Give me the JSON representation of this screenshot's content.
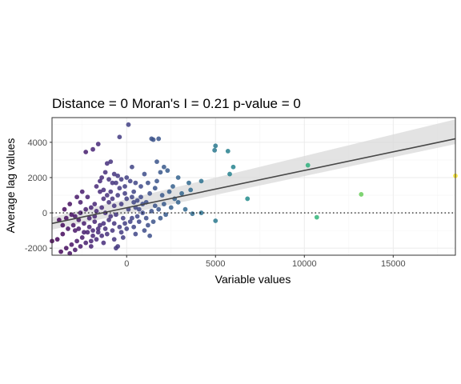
{
  "colors": {
    "panel_border": "#333333",
    "grid_major": "#ebebeb",
    "grid_minor": "#f5f5f5",
    "ribbon": "#d9d9d9",
    "fit_line": "#474747",
    "zero_line": "#000000",
    "viridis_low": "#440154",
    "viridis_mid": "#21908c",
    "viridis_high": "#fde725"
  },
  "chart_data": {
    "type": "scatter",
    "title": "Distance = 0   Moran's I = 0.21   p-value = 0",
    "xlabel": "Variable values",
    "ylabel": "Average lag values",
    "xlim": [
      -4200,
      18500
    ],
    "ylim": [
      -2400,
      5400
    ],
    "xticks": [
      0,
      5000,
      10000,
      15000
    ],
    "yticks": [
      -2000,
      0,
      2000,
      4000
    ],
    "xtick_labels": [
      "0",
      "5000",
      "10000",
      "15000"
    ],
    "ytick_labels": [
      "-2000",
      "0",
      "2000",
      "4000"
    ],
    "grid": true,
    "legend": "none",
    "color_scale": "viridis (by variable value)",
    "reference_line": {
      "type": "horizontal",
      "y": 0,
      "style": "dotted"
    },
    "fit": {
      "type": "linear",
      "x": [
        -4200,
        18500
      ],
      "y": [
        -600,
        4200
      ],
      "ribbon_lower": [
        -950,
        3900
      ],
      "ribbon_upper": [
        -250,
        5300
      ]
    },
    "points": [
      {
        "x": 100,
        "y": 5000
      },
      {
        "x": -400,
        "y": 4300
      },
      {
        "x": 1400,
        "y": 4200
      },
      {
        "x": 1500,
        "y": 4150
      },
      {
        "x": 1800,
        "y": 4200
      },
      {
        "x": -1600,
        "y": 3900
      },
      {
        "x": -2300,
        "y": 3450
      },
      {
        "x": -1900,
        "y": 3600
      },
      {
        "x": -1100,
        "y": 2800
      },
      {
        "x": 1700,
        "y": 2900
      },
      {
        "x": 2100,
        "y": 2600
      },
      {
        "x": 1900,
        "y": 2300
      },
      {
        "x": 2300,
        "y": 2400
      },
      {
        "x": 2900,
        "y": 2000
      },
      {
        "x": 3500,
        "y": 1700
      },
      {
        "x": 3600,
        "y": 1300
      },
      {
        "x": 4200,
        "y": 1800
      },
      {
        "x": 5000,
        "y": 3800
      },
      {
        "x": 4950,
        "y": 3550
      },
      {
        "x": 5700,
        "y": 3500
      },
      {
        "x": 6000,
        "y": 2600
      },
      {
        "x": 5800,
        "y": 2200
      },
      {
        "x": 6800,
        "y": 800
      },
      {
        "x": 5000,
        "y": -450
      },
      {
        "x": 4200,
        "y": 0
      },
      {
        "x": 3700,
        "y": -50
      },
      {
        "x": 10200,
        "y": 2700
      },
      {
        "x": 10700,
        "y": -250
      },
      {
        "x": 13200,
        "y": 1050
      },
      {
        "x": 18500,
        "y": 2100
      },
      {
        "x": -1200,
        "y": 2300
      },
      {
        "x": -500,
        "y": 2100
      },
      {
        "x": -300,
        "y": 1900
      },
      {
        "x": -800,
        "y": 1700
      },
      {
        "x": 200,
        "y": 1800
      },
      {
        "x": 1000,
        "y": 2200
      },
      {
        "x": 1200,
        "y": 1700
      },
      {
        "x": 800,
        "y": 1500
      },
      {
        "x": 1600,
        "y": 1400
      },
      {
        "x": 1300,
        "y": 1100
      },
      {
        "x": 2000,
        "y": 1000
      },
      {
        "x": 2400,
        "y": 1200
      },
      {
        "x": 2700,
        "y": 800
      },
      {
        "x": 2100,
        "y": 500
      },
      {
        "x": 2500,
        "y": 300
      },
      {
        "x": 1800,
        "y": 200
      },
      {
        "x": 2200,
        "y": -100
      },
      {
        "x": 1900,
        "y": -300
      },
      {
        "x": 1500,
        "y": -500
      },
      {
        "x": 1200,
        "y": -700
      },
      {
        "x": 1000,
        "y": -1000
      },
      {
        "x": 1300,
        "y": -1300
      },
      {
        "x": 500,
        "y": -1200
      },
      {
        "x": -200,
        "y": -1400
      },
      {
        "x": -500,
        "y": -1900
      },
      {
        "x": -600,
        "y": -2000
      },
      {
        "x": -1300,
        "y": 1300
      },
      {
        "x": -1500,
        "y": 1200
      },
      {
        "x": -1100,
        "y": 1000
      },
      {
        "x": -800,
        "y": 800
      },
      {
        "x": -400,
        "y": 1400
      },
      {
        "x": -100,
        "y": 1100
      },
      {
        "x": 300,
        "y": 900
      },
      {
        "x": 600,
        "y": 700
      },
      {
        "x": 900,
        "y": 500
      },
      {
        "x": 500,
        "y": 300
      },
      {
        "x": 100,
        "y": 200
      },
      {
        "x": -300,
        "y": 500
      },
      {
        "x": -700,
        "y": 400
      },
      {
        "x": -1000,
        "y": 600
      },
      {
        "x": -1400,
        "y": 300
      },
      {
        "x": -1700,
        "y": 100
      },
      {
        "x": -1200,
        "y": 0
      },
      {
        "x": -900,
        "y": -200
      },
      {
        "x": -600,
        "y": -100
      },
      {
        "x": -200,
        "y": -300
      },
      {
        "x": 200,
        "y": -500
      },
      {
        "x": 600,
        "y": -200
      },
      {
        "x": 900,
        "y": 0
      },
      {
        "x": 700,
        "y": 200
      },
      {
        "x": 400,
        "y": 600
      },
      {
        "x": 0,
        "y": 800
      },
      {
        "x": -500,
        "y": 1000
      },
      {
        "x": -900,
        "y": 1200
      },
      {
        "x": -1300,
        "y": 800
      },
      {
        "x": -1800,
        "y": 500
      },
      {
        "x": -2000,
        "y": 300
      },
      {
        "x": -2300,
        "y": 200
      },
      {
        "x": -2600,
        "y": 0
      },
      {
        "x": -2900,
        "y": -200
      },
      {
        "x": -3100,
        "y": -100
      },
      {
        "x": -3400,
        "y": -300
      },
      {
        "x": -2700,
        "y": -400
      },
      {
        "x": -2400,
        "y": -600
      },
      {
        "x": -2100,
        "y": -300
      },
      {
        "x": -1800,
        "y": -500
      },
      {
        "x": -1500,
        "y": -700
      },
      {
        "x": -1200,
        "y": -900
      },
      {
        "x": -1600,
        "y": -1100
      },
      {
        "x": -1900,
        "y": -1300
      },
      {
        "x": -2200,
        "y": -1100
      },
      {
        "x": -2500,
        "y": -1400
      },
      {
        "x": -2800,
        "y": -1600
      },
      {
        "x": -3100,
        "y": -1800
      },
      {
        "x": -3400,
        "y": -2000
      },
      {
        "x": -3700,
        "y": -2200
      },
      {
        "x": -3200,
        "y": -2300
      },
      {
        "x": -2900,
        "y": -2100
      },
      {
        "x": -2600,
        "y": -1900
      },
      {
        "x": -2300,
        "y": -1700
      },
      {
        "x": -2000,
        "y": -1600
      },
      {
        "x": -1700,
        "y": -1500
      },
      {
        "x": -1400,
        "y": -1300
      },
      {
        "x": -1100,
        "y": -1200
      },
      {
        "x": -800,
        "y": -1000
      },
      {
        "x": -3900,
        "y": -1500
      },
      {
        "x": -4200,
        "y": -1600
      },
      {
        "x": -3600,
        "y": -1200
      },
      {
        "x": -3300,
        "y": -900
      },
      {
        "x": -3000,
        "y": -700
      },
      {
        "x": -2700,
        "y": -900
      },
      {
        "x": -2400,
        "y": -1100
      },
      {
        "x": -2100,
        "y": -800
      },
      {
        "x": -1900,
        "y": -1000
      },
      {
        "x": -1600,
        "y": -900
      },
      {
        "x": -1300,
        "y": -600
      },
      {
        "x": -1000,
        "y": -400
      },
      {
        "x": -700,
        "y": -600
      },
      {
        "x": -400,
        "y": -800
      },
      {
        "x": -100,
        "y": -600
      },
      {
        "x": 300,
        "y": -300
      },
      {
        "x": 700,
        "y": -500
      },
      {
        "x": 1100,
        "y": -300
      },
      {
        "x": 1400,
        "y": 100
      },
      {
        "x": 1600,
        "y": 400
      },
      {
        "x": 1100,
        "y": 600
      },
      {
        "x": 800,
        "y": 900
      },
      {
        "x": 400,
        "y": 1200
      },
      {
        "x": -100,
        "y": 1500
      },
      {
        "x": -600,
        "y": 1700
      },
      {
        "x": -1000,
        "y": 1900
      },
      {
        "x": -1400,
        "y": 2000
      },
      {
        "x": -2500,
        "y": 1200
      },
      {
        "x": -2800,
        "y": 900
      },
      {
        "x": -3200,
        "y": 500
      },
      {
        "x": -3500,
        "y": 200
      },
      {
        "x": -3800,
        "y": -400
      },
      {
        "x": -2600,
        "y": 600
      },
      {
        "x": -2200,
        "y": 900
      },
      {
        "x": -1700,
        "y": 1500
      },
      {
        "x": -1500,
        "y": 1800
      },
      {
        "x": -700,
        "y": 2200
      },
      {
        "x": 0,
        "y": 2000
      },
      {
        "x": 500,
        "y": 1700
      },
      {
        "x": 1700,
        "y": 1800
      },
      {
        "x": 2600,
        "y": 1500
      },
      {
        "x": 3100,
        "y": 1100
      },
      {
        "x": 2900,
        "y": 600
      },
      {
        "x": 3300,
        "y": 200
      },
      {
        "x": 300,
        "y": 2600
      },
      {
        "x": -900,
        "y": 2900
      },
      {
        "x": -1800,
        "y": -200
      },
      {
        "x": -2000,
        "y": -1900
      },
      {
        "x": -1300,
        "y": -1700
      },
      {
        "x": -700,
        "y": -1500
      },
      {
        "x": -300,
        "y": -1100
      },
      {
        "x": 0,
        "y": -900
      },
      {
        "x": 400,
        "y": -800
      },
      {
        "x": -2900,
        "y": -1000
      },
      {
        "x": -3600,
        "y": -700
      }
    ]
  }
}
